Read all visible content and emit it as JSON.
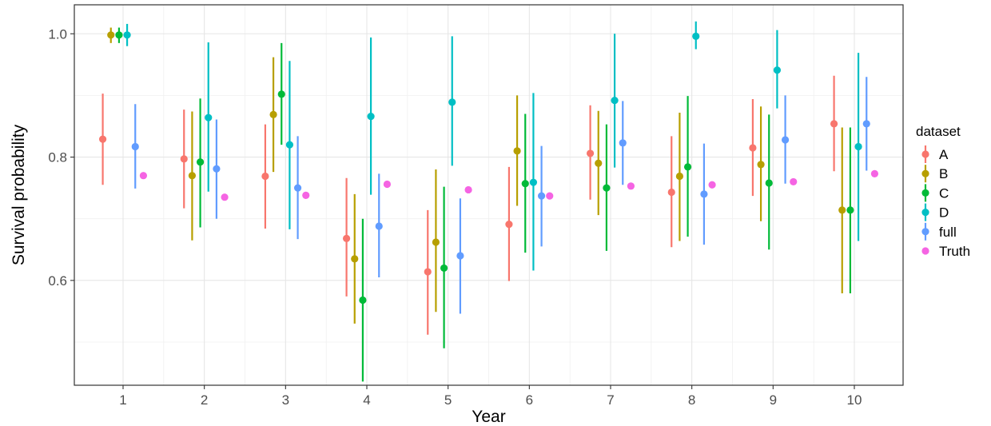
{
  "chart_data": {
    "type": "scatter",
    "subtype": "point-range (dodged points with error bars)",
    "title": "",
    "xlabel": "Year",
    "ylabel": "Survival probability",
    "x": [
      1,
      2,
      3,
      4,
      5,
      6,
      7,
      8,
      9,
      10
    ],
    "xticks": [
      "1",
      "2",
      "3",
      "4",
      "5",
      "6",
      "7",
      "8",
      "9",
      "10"
    ],
    "yticks": [
      0.6,
      0.8,
      1.0
    ],
    "ytick_labels": [
      "0.6",
      "0.8",
      "1.0"
    ],
    "xlim": [
      0.4,
      10.6
    ],
    "ylim": [
      0.43,
      1.047
    ],
    "grid": true,
    "legend": {
      "title": "dataset",
      "position": "right"
    },
    "series": [
      {
        "name": "A",
        "color": "#F8766D",
        "values": [
          0.829,
          0.797,
          0.769,
          0.668,
          0.614,
          0.691,
          0.806,
          0.743,
          0.815,
          0.854
        ],
        "lower": [
          0.755,
          0.717,
          0.684,
          0.574,
          0.512,
          0.599,
          0.731,
          0.654,
          0.737,
          0.777
        ],
        "upper": [
          0.903,
          0.877,
          0.853,
          0.766,
          0.714,
          0.784,
          0.884,
          0.834,
          0.894,
          0.932
        ]
      },
      {
        "name": "B",
        "color": "#B79F00",
        "values": [
          0.998,
          0.77,
          0.869,
          0.635,
          0.662,
          0.81,
          0.79,
          0.769,
          0.788,
          0.714
        ],
        "lower": [
          0.985,
          0.665,
          0.776,
          0.53,
          0.549,
          0.721,
          0.706,
          0.664,
          0.696,
          0.579
        ],
        "upper": [
          1.01,
          0.874,
          0.962,
          0.74,
          0.78,
          0.9,
          0.875,
          0.872,
          0.882,
          0.848
        ]
      },
      {
        "name": "C",
        "color": "#00BA38",
        "values": [
          0.998,
          0.792,
          0.902,
          0.568,
          0.62,
          0.757,
          0.75,
          0.784,
          0.758,
          0.714
        ],
        "lower": [
          0.985,
          0.686,
          0.82,
          0.436,
          0.49,
          0.645,
          0.648,
          0.671,
          0.65,
          0.579
        ],
        "upper": [
          1.01,
          0.895,
          0.985,
          0.7,
          0.752,
          0.87,
          0.853,
          0.899,
          0.869,
          0.848
        ]
      },
      {
        "name": "D",
        "color": "#00BFC4",
        "values": [
          0.998,
          0.864,
          0.82,
          0.866,
          0.889,
          0.759,
          0.892,
          0.996,
          0.941,
          0.817
        ],
        "lower": [
          0.98,
          0.744,
          0.683,
          0.739,
          0.786,
          0.616,
          0.783,
          0.975,
          0.879,
          0.664
        ],
        "upper": [
          1.016,
          0.986,
          0.956,
          0.994,
          0.996,
          0.904,
          1.0,
          1.02,
          1.006,
          0.969
        ]
      },
      {
        "name": "full",
        "color": "#619CFF",
        "values": [
          0.817,
          0.781,
          0.75,
          0.688,
          0.64,
          0.737,
          0.823,
          0.74,
          0.828,
          0.854
        ],
        "lower": [
          0.749,
          0.7,
          0.667,
          0.605,
          0.546,
          0.655,
          0.755,
          0.658,
          0.757,
          0.778
        ],
        "upper": [
          0.886,
          0.861,
          0.834,
          0.773,
          0.733,
          0.818,
          0.891,
          0.822,
          0.9,
          0.93
        ]
      },
      {
        "name": "Truth",
        "color": "#F564E3",
        "values": [
          0.77,
          0.735,
          0.738,
          0.756,
          0.747,
          0.737,
          0.753,
          0.755,
          0.76,
          0.773
        ]
      }
    ]
  }
}
